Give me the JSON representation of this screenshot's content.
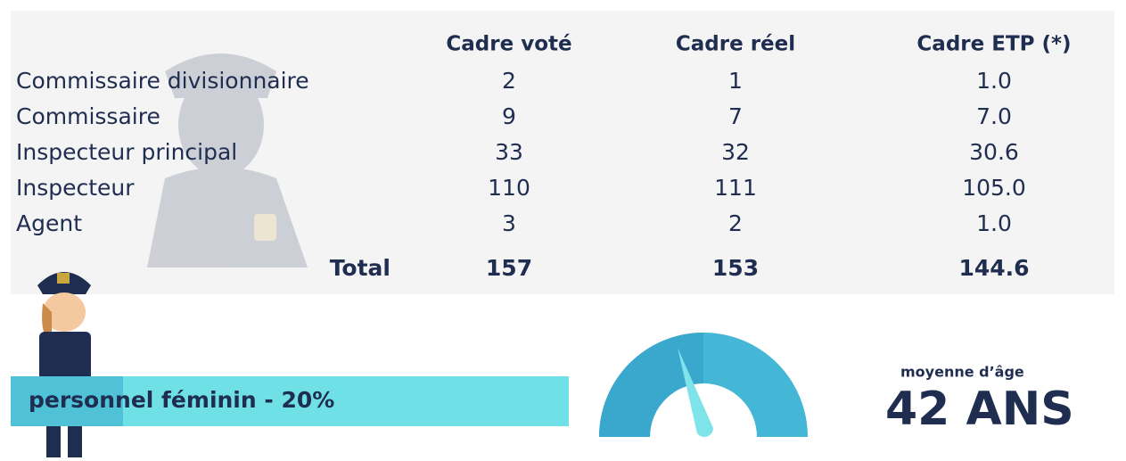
{
  "table": {
    "headers": [
      "Cadre voté",
      "Cadre réel",
      "Cadre ETP (*)"
    ],
    "rows": [
      [
        "Commissaire divisionnaire",
        "2",
        "1",
        "1.0"
      ],
      [
        "Commissaire",
        "9",
        "7",
        "7.0"
      ],
      [
        "Inspecteur principal",
        "33",
        "32",
        "30.6"
      ],
      [
        "Inspecteur",
        "110",
        "111",
        "105.0"
      ],
      [
        "Agent",
        "3",
        "2",
        "1.0"
      ]
    ],
    "total": [
      "Total",
      "157",
      "153",
      "144.6"
    ]
  },
  "female": {
    "label": "personnel féminin - 20%"
  },
  "age": {
    "label": "moyenne d’âge",
    "value": "42 ANS"
  }
}
